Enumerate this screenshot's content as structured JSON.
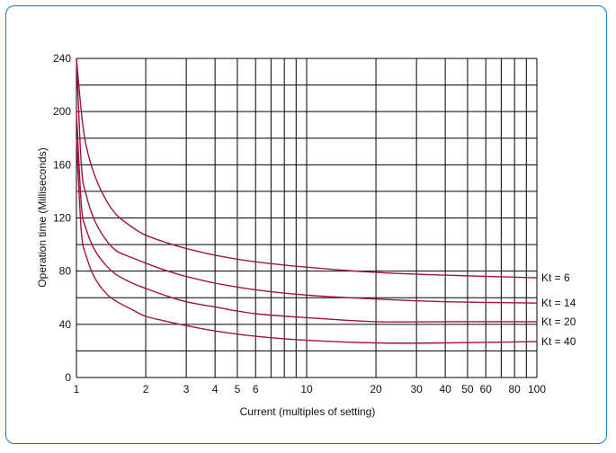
{
  "chart_data": {
    "type": "line",
    "xlabel": "Current (multiples of setting)",
    "ylabel": "Operation time (Milliseconds)",
    "x_scale": "log",
    "xlim": [
      1,
      100
    ],
    "ylim": [
      0,
      240
    ],
    "grid": true,
    "x_ticks": [
      {
        "value": 1,
        "label": "1"
      },
      {
        "value": 2,
        "label": "2"
      },
      {
        "value": 3,
        "label": "3"
      },
      {
        "value": 4,
        "label": "4"
      },
      {
        "value": 5,
        "label": "5"
      },
      {
        "value": 6,
        "label": "6"
      },
      {
        "value": 10,
        "label": "10"
      },
      {
        "value": 20,
        "label": "20"
      },
      {
        "value": 30,
        "label": "30"
      },
      {
        "value": 40,
        "label": "40"
      },
      {
        "value": 50,
        "label": "50"
      },
      {
        "value": 60,
        "label": "60"
      },
      {
        "value": 80,
        "label": "80"
      },
      {
        "value": 100,
        "label": "100"
      }
    ],
    "x_gridlines": [
      1,
      2,
      3,
      4,
      5,
      6,
      7,
      8,
      9,
      10,
      20,
      30,
      40,
      50,
      60,
      70,
      80,
      90,
      100
    ],
    "y_ticks": [
      0,
      40,
      80,
      120,
      160,
      200,
      240
    ],
    "y_gridlines": [
      0,
      20,
      40,
      60,
      80,
      100,
      120,
      140,
      160,
      180,
      200,
      220,
      240
    ],
    "line_color": "#a0143c",
    "series": [
      {
        "name": "Kt = 6",
        "x": [
          1,
          1.05,
          1.1,
          1.2,
          1.35,
          1.5,
          1.75,
          2,
          2.5,
          3,
          4,
          6,
          10,
          20,
          40,
          100
        ],
        "y": [
          240,
          200,
          175,
          152,
          133,
          122,
          113,
          107,
          101,
          97,
          92,
          87,
          83,
          79,
          77,
          75
        ]
      },
      {
        "name": "Kt = 14",
        "x": [
          1,
          1.05,
          1.1,
          1.2,
          1.35,
          1.5,
          1.75,
          2,
          2.5,
          3,
          4,
          6,
          10,
          20,
          40,
          100
        ],
        "y": [
          240,
          160,
          138,
          118,
          103,
          95,
          90,
          86,
          80,
          76,
          71,
          66,
          62,
          59,
          57,
          56
        ]
      },
      {
        "name": "Kt = 20",
        "x": [
          1,
          1.05,
          1.1,
          1.2,
          1.35,
          1.5,
          1.75,
          2,
          2.5,
          3,
          4,
          6,
          10,
          20,
          40,
          100
        ],
        "y": [
          200,
          130,
          112,
          96,
          84,
          77,
          71,
          67,
          61,
          57,
          53,
          48,
          45,
          42,
          42,
          42
        ]
      },
      {
        "name": "Kt = 40",
        "x": [
          1,
          1.05,
          1.1,
          1.2,
          1.35,
          1.5,
          1.75,
          2,
          2.5,
          3,
          4,
          6,
          10,
          20,
          40,
          100
        ],
        "y": [
          180,
          110,
          92,
          75,
          63,
          57,
          51,
          46,
          42,
          39,
          35,
          31,
          28,
          26,
          26,
          27
        ]
      }
    ]
  }
}
